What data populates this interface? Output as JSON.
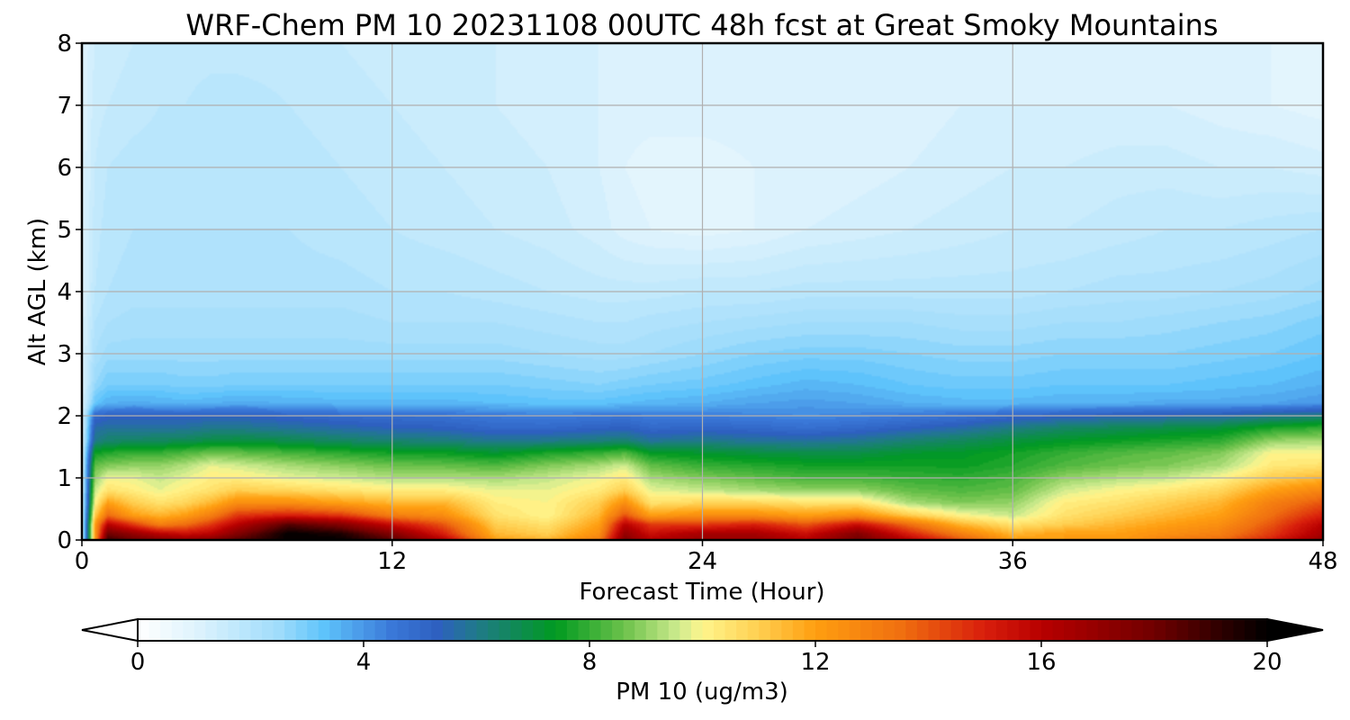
{
  "chart_data": {
    "type": "heatmap",
    "title": "WRF-Chem PM 10  20231108 00UTC 48h fcst at Great Smoky Mountains",
    "xlabel": "Forecast Time (Hour)",
    "ylabel": "Alt AGL (km)",
    "xlim": [
      0,
      48
    ],
    "ylim": [
      0,
      8
    ],
    "xticks": [
      "0",
      "12",
      "24",
      "36",
      "48"
    ],
    "yticks": [
      "0",
      "1",
      "2",
      "3",
      "4",
      "5",
      "6",
      "7",
      "8"
    ],
    "grid": true,
    "colorbar": {
      "label": "PM 10  (ug/m3)",
      "range": [
        0,
        20
      ],
      "ticks": [
        "0",
        "4",
        "8",
        "12",
        "16",
        "20"
      ],
      "extend": "both",
      "stops": [
        {
          "v": 0,
          "c": "#ffffff"
        },
        {
          "v": 1,
          "c": "#e0f4fd"
        },
        {
          "v": 2.5,
          "c": "#9fdcfb"
        },
        {
          "v": 3.3,
          "c": "#5ec3fb"
        },
        {
          "v": 4.5,
          "c": "#3a78d8"
        },
        {
          "v": 5.3,
          "c": "#2e60c0"
        },
        {
          "v": 6,
          "c": "#207a8a"
        },
        {
          "v": 7.4,
          "c": "#009a20"
        },
        {
          "v": 8.6,
          "c": "#6bc14a"
        },
        {
          "v": 9.6,
          "c": "#d0ec90"
        },
        {
          "v": 10,
          "c": "#fff58c"
        },
        {
          "v": 11,
          "c": "#ffcf50"
        },
        {
          "v": 12,
          "c": "#ff9e10"
        },
        {
          "v": 13.5,
          "c": "#f07010"
        },
        {
          "v": 15,
          "c": "#d81e0c"
        },
        {
          "v": 16,
          "c": "#b80000"
        },
        {
          "v": 18,
          "c": "#700000"
        },
        {
          "v": 20,
          "c": "#000000"
        }
      ]
    },
    "field": {
      "description_axes": "z rows are altitudes in km (alt), values are PM10 in ug/m3 at forecast hours (hours)",
      "hours": [
        0,
        0.5,
        1,
        2,
        3,
        4,
        5,
        6,
        8,
        10,
        12,
        14,
        16,
        18,
        20,
        21,
        22,
        24,
        26,
        28,
        30,
        32,
        34,
        36,
        38,
        40,
        42,
        44,
        46,
        48
      ],
      "alt": [
        0,
        0.1,
        0.25,
        0.4,
        0.6,
        0.8,
        1.0,
        1.2,
        1.4,
        1.6,
        1.8,
        2.0,
        2.2,
        2.5,
        3.0,
        3.5,
        4.0,
        5.0,
        6.0,
        7.0,
        8.0
      ],
      "z": [
        [
          1,
          12,
          19,
          18,
          17.5,
          17,
          17.5,
          18.5,
          20,
          20,
          18.5,
          16,
          12,
          11.5,
          13,
          17.5,
          16,
          17,
          17,
          16,
          18,
          16,
          14,
          12,
          12,
          12,
          13,
          13.5,
          15,
          17
        ],
        [
          1,
          12,
          18,
          17,
          16,
          15.5,
          16,
          17.5,
          20,
          19.5,
          17.5,
          15,
          11.5,
          11,
          12.5,
          17,
          15.5,
          16.5,
          16.5,
          15.5,
          17.5,
          15,
          13,
          11.5,
          12,
          12,
          12.5,
          13,
          14.5,
          16.5
        ],
        [
          1,
          12,
          16,
          14.5,
          13,
          13.5,
          14.5,
          16,
          18.5,
          17.5,
          15.5,
          14,
          11,
          10.5,
          12,
          16,
          14.5,
          14.5,
          15,
          14,
          15.5,
          13.5,
          11.5,
          10.5,
          11,
          11.5,
          12,
          12.5,
          14,
          16
        ],
        [
          1,
          11,
          13.5,
          12,
          11.5,
          12,
          13,
          14.5,
          15,
          14.5,
          13,
          12.5,
          10.5,
          10,
          11.5,
          14,
          12,
          12.5,
          12.5,
          12,
          12.5,
          11,
          10,
          9.5,
          10.5,
          11,
          11.5,
          12,
          13.5,
          15
        ],
        [
          1,
          10,
          12,
          11,
          10.5,
          10.8,
          11.5,
          12.5,
          12.5,
          12,
          11.5,
          11.5,
          10.2,
          10,
          11,
          12.5,
          10.5,
          10.8,
          10.8,
          10.5,
          10.5,
          9.2,
          8.8,
          9,
          10.2,
          10.5,
          11,
          11.5,
          13,
          14
        ],
        [
          1,
          9.5,
          10.5,
          10.2,
          9.8,
          10.2,
          10.5,
          11,
          10.8,
          10.5,
          10.2,
          10.2,
          9.8,
          9.8,
          10.3,
          11,
          9.8,
          9.5,
          9.2,
          9,
          9,
          8.5,
          8.3,
          8.5,
          9.6,
          10,
          10.3,
          10.8,
          12,
          12.8
        ],
        [
          1,
          9,
          9.9,
          9.8,
          9.5,
          9.8,
          10.2,
          10.2,
          9.8,
          9.6,
          9.3,
          9.3,
          9.2,
          9.5,
          9.9,
          10.3,
          9.2,
          8.8,
          8.5,
          8.2,
          8.2,
          8,
          7.9,
          8.2,
          9,
          9.3,
          9.5,
          10,
          11,
          11.5
        ],
        [
          1,
          8.5,
          8.8,
          9,
          9,
          9.3,
          9.8,
          9.6,
          9.2,
          8.9,
          8.6,
          8.5,
          8.3,
          8.8,
          9.2,
          9.6,
          8.5,
          8,
          7.8,
          7.6,
          7.6,
          7.6,
          7.5,
          7.8,
          8.3,
          8.6,
          8.8,
          9.2,
          10.3,
          10.5
        ],
        [
          1,
          7.5,
          7.8,
          8,
          8,
          8.3,
          8.6,
          8.5,
          8.2,
          7.9,
          7.6,
          7.5,
          7.2,
          7.7,
          8,
          8.3,
          7.4,
          7.2,
          7,
          6.9,
          6.9,
          7.2,
          7.3,
          7.6,
          8,
          8.3,
          8.5,
          8.8,
          10,
          10
        ],
        [
          1,
          6,
          6.4,
          6.5,
          6.6,
          6.7,
          6.9,
          7,
          6.8,
          6.5,
          6.3,
          6.2,
          5.9,
          6,
          6.2,
          6.3,
          5.8,
          6,
          5.8,
          5.7,
          5.9,
          6.3,
          6.6,
          7,
          7.3,
          7.5,
          7.7,
          7.9,
          9,
          9.2
        ],
        [
          1,
          5.6,
          5.8,
          5.8,
          5.8,
          5.8,
          6,
          6,
          5.8,
          5.6,
          5.4,
          5.3,
          5,
          5,
          5.2,
          5.3,
          5,
          5.1,
          5,
          4.8,
          5,
          5.3,
          5.6,
          6.1,
          6.5,
          6.7,
          6.9,
          7.1,
          7.7,
          8
        ],
        [
          1,
          5,
          5.2,
          5.2,
          5.2,
          5.2,
          5.3,
          5.3,
          5.1,
          4.9,
          4.8,
          4.7,
          4.5,
          4.4,
          4.5,
          4.6,
          4.4,
          4.4,
          4.3,
          4.2,
          4.3,
          4.5,
          4.7,
          5,
          5.2,
          5.4,
          5.5,
          5.6,
          5.9,
          6.2
        ],
        [
          1,
          3.2,
          3.6,
          3.7,
          3.6,
          3.5,
          3.6,
          3.7,
          3.6,
          3.5,
          3.5,
          3.5,
          3.4,
          3.3,
          3.3,
          3.4,
          3.5,
          3.6,
          3.8,
          3.9,
          3.8,
          3.6,
          3.5,
          3.5,
          3.6,
          3.6,
          3.7,
          3.7,
          3.8,
          4
        ],
        [
          1,
          2.6,
          3,
          3,
          3,
          2.9,
          2.9,
          3,
          3,
          3,
          3,
          3,
          3,
          2.9,
          2.8,
          2.9,
          3,
          3.1,
          3.3,
          3.5,
          3.4,
          3.2,
          3.1,
          3.1,
          3.2,
          3.2,
          3.2,
          3.3,
          3.4,
          3.6
        ],
        [
          1,
          2.2,
          2.5,
          2.5,
          2.5,
          2.5,
          2.5,
          2.5,
          2.5,
          2.5,
          2.5,
          2.5,
          2.5,
          2.4,
          2.3,
          2.3,
          2.4,
          2.6,
          2.8,
          2.9,
          2.9,
          2.8,
          2.7,
          2.7,
          2.8,
          2.8,
          2.8,
          2.9,
          3,
          3.2
        ],
        [
          1,
          2,
          2.2,
          2.3,
          2.3,
          2.3,
          2.3,
          2.3,
          2.3,
          2.3,
          2.2,
          2.2,
          2.2,
          2.1,
          2,
          2,
          2.1,
          2.2,
          2.3,
          2.4,
          2.4,
          2.4,
          2.3,
          2.3,
          2.4,
          2.4,
          2.5,
          2.6,
          2.7,
          2.9
        ],
        [
          1,
          1.8,
          2,
          2.1,
          2.1,
          2.1,
          2.1,
          2.1,
          2.1,
          2.1,
          2,
          2,
          1.9,
          1.8,
          1.7,
          1.7,
          1.7,
          1.8,
          1.8,
          1.9,
          1.9,
          1.9,
          1.9,
          1.9,
          2,
          2.1,
          2.1,
          2.2,
          2.3,
          2.5
        ],
        [
          1,
          1.7,
          1.9,
          2,
          2,
          2,
          2,
          2,
          2,
          1.9,
          1.8,
          1.7,
          1.6,
          1.5,
          1.3,
          1.1,
          1,
          0.9,
          1,
          1.2,
          1.3,
          1.4,
          1.5,
          1.6,
          1.6,
          1.7,
          1.8,
          1.8,
          1.9,
          2
        ],
        [
          1,
          1.6,
          1.8,
          1.9,
          1.9,
          1.9,
          1.9,
          1.9,
          1.9,
          1.8,
          1.7,
          1.6,
          1.5,
          1.4,
          1.2,
          1,
          0.9,
          0.9,
          1,
          1,
          1.1,
          1.2,
          1.3,
          1.4,
          1.4,
          1.5,
          1.5,
          1.4,
          1.4,
          1.3
        ],
        [
          1,
          1.5,
          1.6,
          1.7,
          1.8,
          1.8,
          1.9,
          1.9,
          1.8,
          1.7,
          1.6,
          1.5,
          1.4,
          1.3,
          1.2,
          1.1,
          1.1,
          1.1,
          1.1,
          1.1,
          1.1,
          1.1,
          1.2,
          1.2,
          1.2,
          1.2,
          1.2,
          1.1,
          1,
          0.9
        ],
        [
          1,
          1.4,
          1.5,
          1.6,
          1.6,
          1.7,
          1.7,
          1.7,
          1.7,
          1.6,
          1.5,
          1.5,
          1.4,
          1.3,
          1.2,
          1.2,
          1.2,
          1.2,
          1.2,
          1.2,
          1.2,
          1.2,
          1.2,
          1.2,
          1.2,
          1.2,
          1.2,
          1.1,
          1,
          0.9
        ]
      ]
    }
  }
}
